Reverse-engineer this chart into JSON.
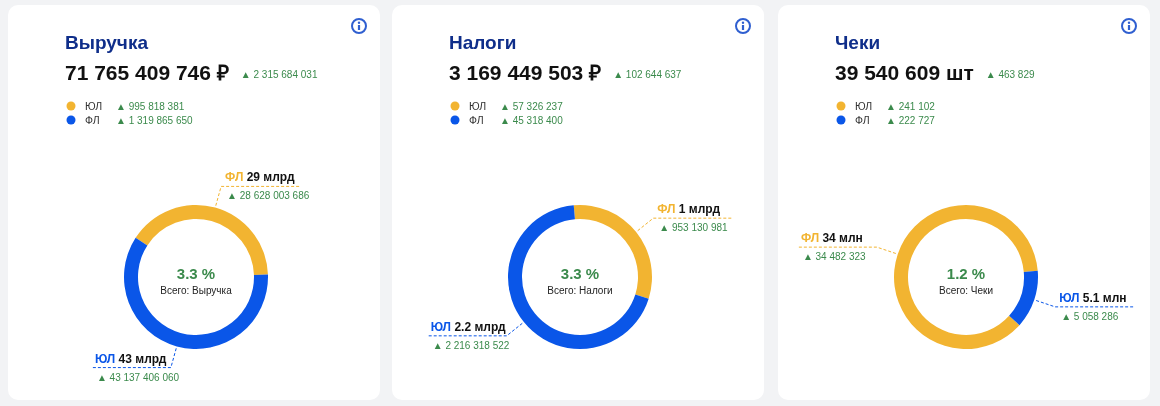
{
  "chart_data": [
    {
      "type": "donut",
      "title": "Выручка",
      "subtitle": "71 765 409 746 ₽",
      "categories": [
        "ФЛ",
        "ЮЛ"
      ],
      "values": [
        29,
        43
      ],
      "colors": [
        "#f2b431",
        "#0a56e8"
      ],
      "value_labels": [
        "29 млрд",
        "43 млрд"
      ],
      "annotations": [
        "▲ 2 315 684 031",
        "ЮЛ",
        "▲ 995 818 381",
        "ФЛ",
        "▲ 1 319 865 650",
        "3.3 %",
        "Всего: Выручка",
        "▲ 28 628 003 686",
        "▲ 43 137 406 060"
      ]
    },
    {
      "type": "donut",
      "title": "Налоги",
      "subtitle": "3 169 449 503 ₽",
      "categories": [
        "ФЛ",
        "ЮЛ"
      ],
      "values": [
        1,
        2.2
      ],
      "colors": [
        "#f2b431",
        "#0a56e8"
      ],
      "value_labels": [
        "1 млрд",
        "2.2 млрд"
      ],
      "annotations": [
        "▲ 102 644 637",
        "ЮЛ",
        "▲ 57 326 237",
        "ФЛ",
        "▲ 45 318 400",
        "3.3 %",
        "Всего: Налоги",
        "▲ 953 130 981",
        "▲ 2 216 318 522"
      ]
    },
    {
      "type": "donut",
      "title": "Чеки",
      "subtitle": "39 540 609 шт",
      "categories": [
        "ФЛ",
        "ЮЛ"
      ],
      "values": [
        34,
        5.1
      ],
      "colors": [
        "#f2b431",
        "#0a56e8"
      ],
      "value_labels": [
        "34 млн",
        "5.1 млн"
      ],
      "annotations": [
        "▲ 463 829",
        "ЮЛ",
        "▲ 241 102",
        "ФЛ",
        "▲ 222 727",
        "1.2 %",
        "Всего: Чеки",
        "▲ 34 482 323",
        "▲ 5 058 286"
      ]
    }
  ]
}
